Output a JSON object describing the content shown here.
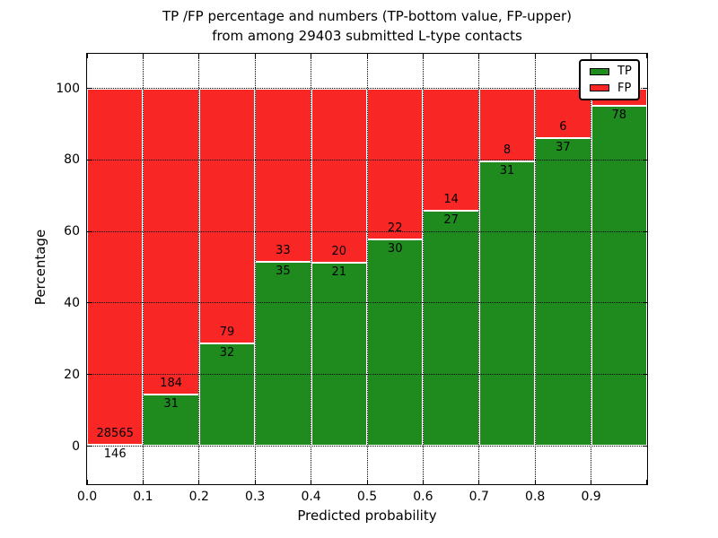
{
  "title": {
    "line1": "TP /FP percentage and numbers (TP-bottom value, FP-upper)",
    "line2": "from among 29403 submitted L-type contacts"
  },
  "chart_data": {
    "type": "bar",
    "stacked": true,
    "normalized_to": 100,
    "title": "TP /FP percentage and numbers (TP-bottom value, FP-upper) from among 29403 submitted L-type contacts",
    "xlabel": "Predicted probability",
    "ylabel": "Percentage",
    "xlim": [
      0.0,
      1.0
    ],
    "ylim": [
      -11,
      110
    ],
    "bin_width": 0.1,
    "x_tick_labels": [
      "0.0",
      "0.1",
      "0.2",
      "0.3",
      "0.4",
      "0.5",
      "0.6",
      "0.7",
      "0.8",
      "0.9"
    ],
    "y_ticks": [
      0,
      20,
      40,
      60,
      80,
      100
    ],
    "grid": "dotted",
    "bins": [
      {
        "range": "0.0-0.1",
        "tp_count": 146,
        "fp_count": 28565,
        "tp_pct": 0.5,
        "tp_label": "146",
        "fp_label": "28565"
      },
      {
        "range": "0.1-0.2",
        "tp_count": 31,
        "fp_count": 184,
        "tp_pct": 14.4,
        "tp_label": "31",
        "fp_label": "184"
      },
      {
        "range": "0.2-0.3",
        "tp_count": 32,
        "fp_count": 79,
        "tp_pct": 28.8,
        "tp_label": "32",
        "fp_label": "79"
      },
      {
        "range": "0.3-0.4",
        "tp_count": 35,
        "fp_count": 33,
        "tp_pct": 51.5,
        "tp_label": "35",
        "fp_label": "33"
      },
      {
        "range": "0.4-0.5",
        "tp_count": 21,
        "fp_count": 20,
        "tp_pct": 51.2,
        "tp_label": "21",
        "fp_label": "20"
      },
      {
        "range": "0.5-0.6",
        "tp_count": 30,
        "fp_count": 22,
        "tp_pct": 57.7,
        "tp_label": "30",
        "fp_label": "22"
      },
      {
        "range": "0.6-0.7",
        "tp_count": 27,
        "fp_count": 14,
        "tp_pct": 65.9,
        "tp_label": "27",
        "fp_label": "14"
      },
      {
        "range": "0.7-0.8",
        "tp_count": 31,
        "fp_count": 8,
        "tp_pct": 79.5,
        "tp_label": "31",
        "fp_label": "8"
      },
      {
        "range": "0.8-0.9",
        "tp_count": 37,
        "fp_count": 6,
        "tp_pct": 86.0,
        "tp_label": "37",
        "fp_label": "6"
      },
      {
        "range": "0.9-1.0",
        "tp_count": 78,
        "fp_count": null,
        "tp_pct": 95.1,
        "tp_label": "78",
        "fp_label": null
      }
    ],
    "legend": {
      "position": "upper right",
      "entries": [
        {
          "label": "TP",
          "color": "#1f8b1f"
        },
        {
          "label": "FP",
          "color": "#f92626"
        }
      ]
    }
  },
  "colors": {
    "tp": "#1f8b1f",
    "fp": "#f92626",
    "background": "#ffffff",
    "axis": "#000000",
    "grid": "#000000",
    "bar_edge": "#ffffff"
  }
}
